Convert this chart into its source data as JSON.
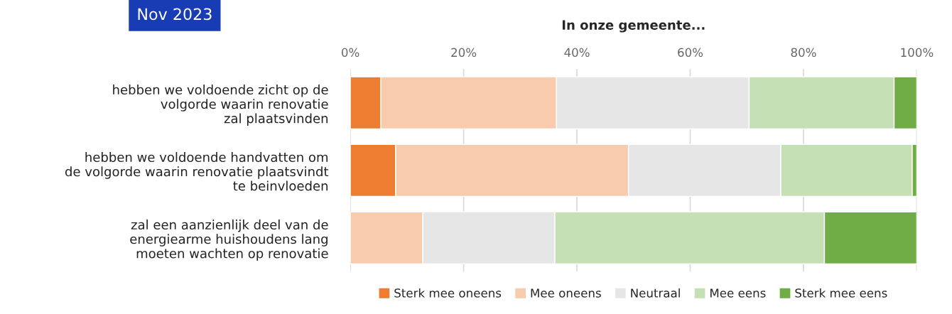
{
  "chart_data": {
    "type": "bar",
    "orientation": "horizontal",
    "stacked": true,
    "title": "In onze gemeente...",
    "annotations": [
      "Nov 2023"
    ],
    "categories": [
      "hebben we voldoende zicht op de\nvolgorde waarin renovatie\nzal plaatsvinden",
      "hebben we voldoende handvatten om\nde volgorde waarin renovatie plaatsvindt\nte beinvloeden",
      "zal een aanzienlijk deel van de\nenergiearme huishoudens lang\nmoeten wachten op renovatie"
    ],
    "series": [
      {
        "name": "Sterk mee oneens",
        "color": "#ed7d31",
        "values": [
          5.4,
          8.0,
          0
        ]
      },
      {
        "name": "Mee oneens",
        "color": "#f8cbad",
        "values": [
          31.0,
          41.1,
          12.8
        ]
      },
      {
        "name": "Neutraal",
        "color": "#e6e6e6",
        "values": [
          34.0,
          26.9,
          23.3
        ]
      },
      {
        "name": "Mee eens",
        "color": "#c5e0b4",
        "values": [
          25.6,
          23.2,
          47.6
        ]
      },
      {
        "name": "Sterk mee eens",
        "color": "#70ad47",
        "values": [
          4.0,
          0.8,
          16.3
        ]
      }
    ],
    "xlim": [
      0,
      100
    ],
    "xticks": [
      {
        "value": 0,
        "label": "0%"
      },
      {
        "value": 20,
        "label": "20%"
      },
      {
        "value": 40,
        "label": "40%"
      },
      {
        "value": 60,
        "label": "60%"
      },
      {
        "value": 80,
        "label": "80%"
      },
      {
        "value": 100,
        "label": "100%"
      }
    ],
    "grid": "x",
    "legend": "bottom"
  }
}
